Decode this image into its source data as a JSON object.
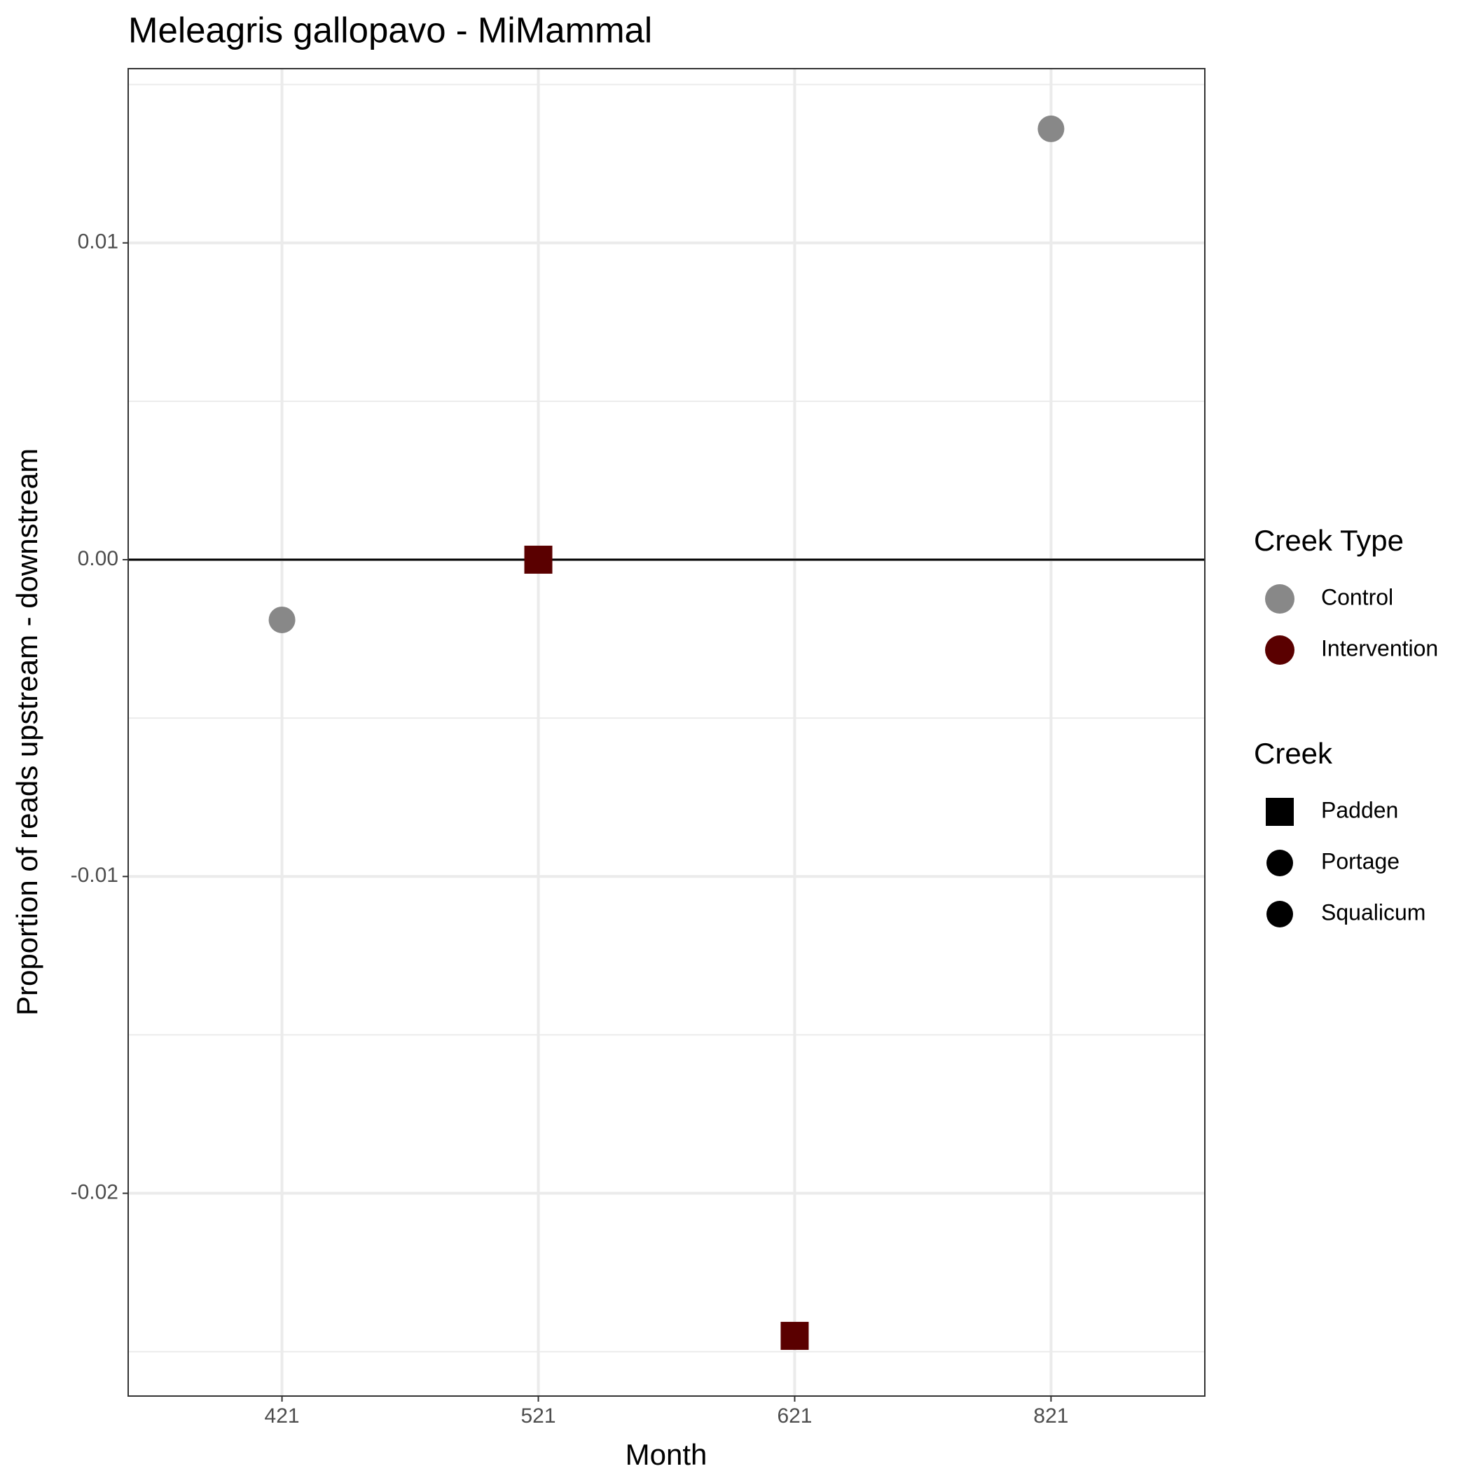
{
  "chart_data": {
    "type": "scatter",
    "title": "Meleagris gallopavo - MiMammal",
    "x_label": "Month",
    "y_label": "Proportion of reads upstream - downstream",
    "categories": [
      "421",
      "521",
      "621",
      "821"
    ],
    "series": [
      {
        "name": "Control",
        "color": "#888888",
        "shapes": [
          "circle",
          null,
          null,
          "circle"
        ],
        "values": [
          -0.0019,
          null,
          null,
          0.0136
        ]
      },
      {
        "name": "Intervention",
        "color": "#5a0000",
        "shapes": [
          null,
          "square",
          "square",
          null
        ],
        "values": [
          null,
          0,
          -0.0245,
          null
        ]
      }
    ],
    "color_legend_title": "Creek Type",
    "shape_legend": {
      "title": "Creek",
      "items": [
        {
          "name": "Padden",
          "shape": "square"
        },
        {
          "name": "Portage",
          "shape": "circle"
        },
        {
          "name": "Squalicum",
          "shape": "circle"
        }
      ]
    },
    "ylim": [
      -0.0264,
      0.0155
    ],
    "yticks": [
      -0.02,
      -0.01,
      {
        "value": 0,
        "label": "0.00"
      },
      0.01
    ],
    "y_minor_gridlines": [
      -0.025,
      -0.015,
      -0.005,
      0.005,
      0.015
    ],
    "hline": 0,
    "grid": true,
    "legend_position": "right"
  }
}
